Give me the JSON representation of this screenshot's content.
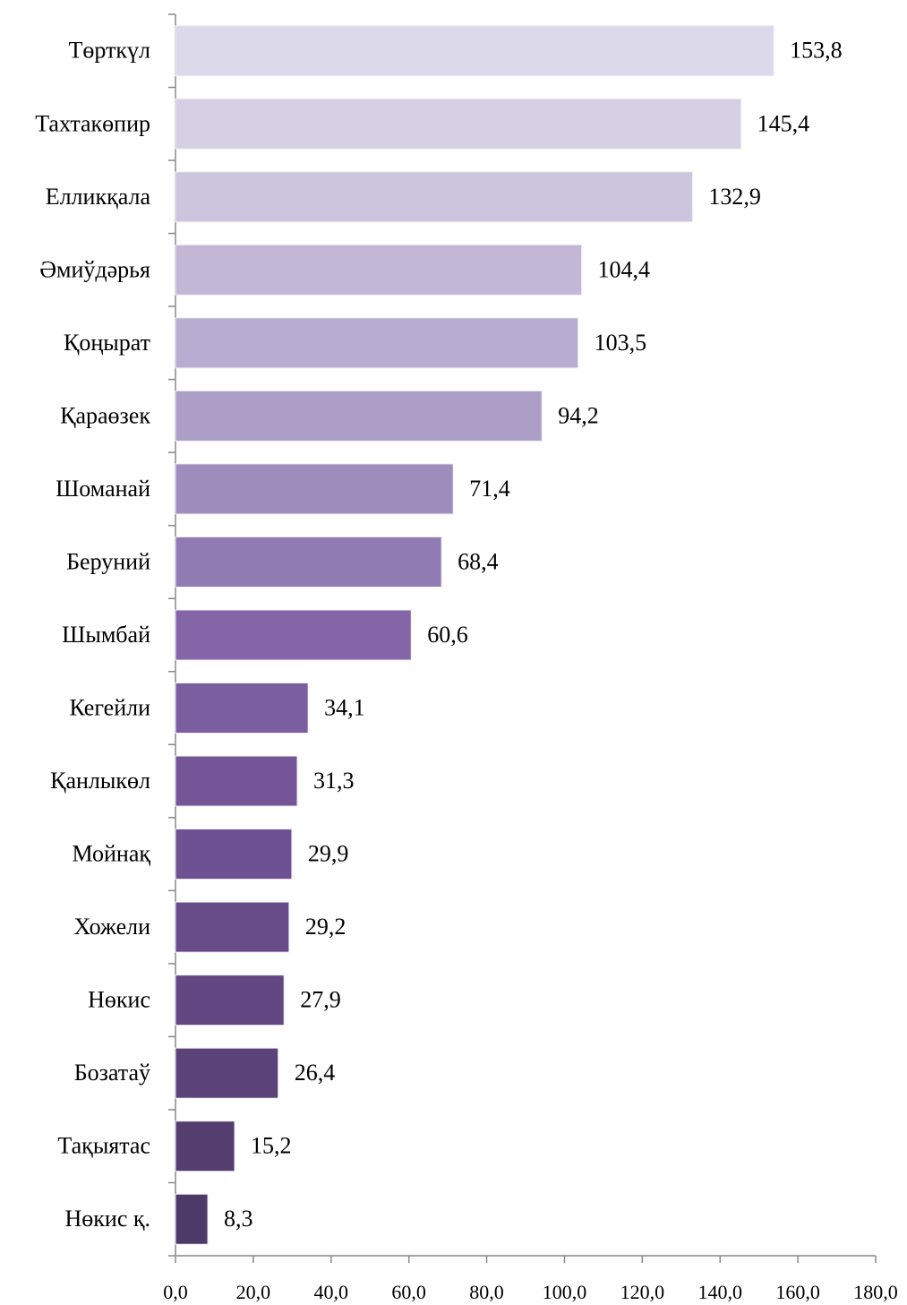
{
  "chart_data": {
    "type": "barh",
    "categories": [
      "Төрткүл",
      "Тахтакөпир",
      "Елликқала",
      "Әмиўдәрья",
      "Қоңырат",
      "Қараөзек",
      "Шоманай",
      "Беруний",
      "Шымбай",
      "Кегейли",
      "Қанлыкөл",
      "Мойнақ",
      "Хожели",
      "Нөкис",
      "Бозатаў",
      "Тақыятас",
      "Нөкис қ."
    ],
    "values": [
      153.8,
      145.4,
      132.9,
      104.4,
      103.5,
      94.2,
      71.4,
      68.4,
      60.6,
      34.1,
      31.3,
      29.9,
      29.2,
      27.9,
      26.4,
      15.2,
      8.3
    ],
    "value_labels": [
      "153,8",
      "145,4",
      "132,9",
      "104,4",
      "103,5",
      "94,2",
      "71,4",
      "68,4",
      "60,6",
      "34,1",
      "31,3",
      "29,9",
      "29,2",
      "27,9",
      "26,4",
      "15,2",
      "8,3"
    ],
    "colors": [
      "#dcdaea",
      "#d5d0e4",
      "#ccc5de",
      "#c2b8d6",
      "#b8acd0",
      "#ac9ec6",
      "#9f8ebd",
      "#907bb2",
      "#8466a8",
      "#7b5ea0",
      "#745698",
      "#6e5192",
      "#684c8a",
      "#624782",
      "#5b4279",
      "#543d6f",
      "#4e3a68"
    ],
    "xlim": [
      0,
      180
    ],
    "xticks": [
      {
        "value": 0,
        "label": "0,0"
      },
      {
        "value": 20,
        "label": "20,0"
      },
      {
        "value": 40,
        "label": "40,0"
      },
      {
        "value": 60,
        "label": "60,0"
      },
      {
        "value": 80,
        "label": "80,0"
      },
      {
        "value": 100,
        "label": "100,0"
      },
      {
        "value": 120,
        "label": "120,0"
      },
      {
        "value": 140,
        "label": "140,0"
      },
      {
        "value": 160,
        "label": "160,0"
      },
      {
        "value": 180,
        "label": "180,0"
      }
    ],
    "grid": false
  }
}
